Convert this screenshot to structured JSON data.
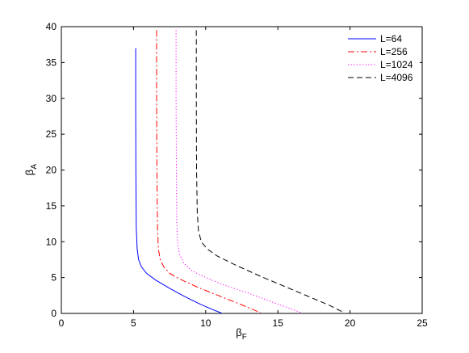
{
  "chart_data": {
    "type": "line",
    "title": "",
    "xlabel": {
      "base": "β",
      "sub": "F"
    },
    "ylabel": {
      "base": "β",
      "sub": "A"
    },
    "xlim": [
      0,
      25
    ],
    "ylim": [
      0,
      40
    ],
    "xticks": [
      "0",
      "5",
      "10",
      "15",
      "20",
      "25"
    ],
    "yticks": [
      "0",
      "5",
      "10",
      "15",
      "20",
      "25",
      "30",
      "35",
      "40"
    ],
    "grid": false,
    "legend_position": "top-right",
    "series": [
      {
        "name": "L=64",
        "color": "#0000ff",
        "dash": "solid",
        "points": [
          [
            5.15,
            37
          ],
          [
            5.15,
            30
          ],
          [
            5.16,
            20
          ],
          [
            5.19,
            12
          ],
          [
            5.25,
            9
          ],
          [
            5.35,
            7.5
          ],
          [
            5.55,
            6.5
          ],
          [
            5.9,
            5.6
          ],
          [
            6.5,
            4.7
          ],
          [
            7.5,
            3.5
          ],
          [
            8.5,
            2.4
          ],
          [
            9.5,
            1.4
          ],
          [
            10.4,
            0.6
          ],
          [
            11.1,
            0.05
          ]
        ]
      },
      {
        "name": "L=256",
        "color": "#ff0000",
        "dash": "dashdot",
        "points": [
          [
            6.6,
            39.5
          ],
          [
            6.6,
            30
          ],
          [
            6.62,
            20
          ],
          [
            6.66,
            12
          ],
          [
            6.72,
            9
          ],
          [
            6.85,
            7.5
          ],
          [
            7.1,
            6.5
          ],
          [
            7.5,
            5.6
          ],
          [
            8.2,
            4.8
          ],
          [
            9.5,
            3.6
          ],
          [
            11,
            2.4
          ],
          [
            12.5,
            1.2
          ],
          [
            13.8,
            0.1
          ]
        ]
      },
      {
        "name": "L=1024",
        "color": "#ff00ff",
        "dash": "dotted",
        "points": [
          [
            7.95,
            39.5
          ],
          [
            7.95,
            30
          ],
          [
            7.97,
            20
          ],
          [
            8.0,
            13
          ],
          [
            8.05,
            10
          ],
          [
            8.2,
            8.2
          ],
          [
            8.5,
            7.0
          ],
          [
            9.0,
            6.0
          ],
          [
            9.8,
            5.2
          ],
          [
            11.2,
            4.0
          ],
          [
            13,
            2.8
          ],
          [
            15,
            1.3
          ],
          [
            16.7,
            0.05
          ]
        ]
      },
      {
        "name": "L=4096",
        "color": "#000000",
        "dash": "dashed",
        "points": [
          [
            9.35,
            39.5
          ],
          [
            9.35,
            30
          ],
          [
            9.37,
            20
          ],
          [
            9.42,
            14
          ],
          [
            9.5,
            11.5
          ],
          [
            9.7,
            10
          ],
          [
            10.1,
            9.0
          ],
          [
            10.8,
            8.0
          ],
          [
            12,
            6.8
          ],
          [
            14,
            5.0
          ],
          [
            16.5,
            2.9
          ],
          [
            18.5,
            1.2
          ],
          [
            19.6,
            0.1
          ]
        ]
      }
    ]
  }
}
